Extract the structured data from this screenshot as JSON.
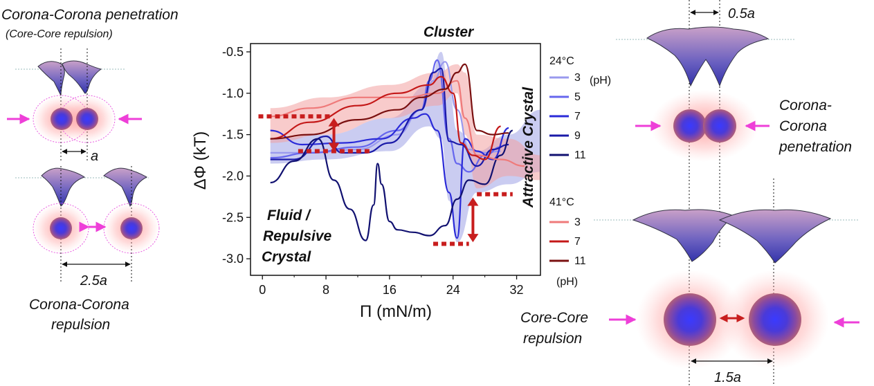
{
  "left_panel": {
    "title": "Corona-Corona penetration",
    "subtitle": "(Core-Core repulsion)",
    "gap_label_close": "a",
    "gap_label_far": "2.5a",
    "caption_line1": "Corona-Corona",
    "caption_line2": "repulsion"
  },
  "right_panel": {
    "top_gap_label": "0.5a",
    "penetration_line1": "Corona-",
    "penetration_line2": "Corona",
    "penetration_line3": "penetration",
    "core_line1": "Core-Core",
    "core_line2": "repulsion",
    "bottom_gap_label": "1.5a"
  },
  "annotations": {
    "cluster": "Cluster",
    "attractive": "Attractive Crystal",
    "fluid_line1": "Fluid /",
    "fluid_line2": "Repulsive",
    "fluid_line3": "Crystal"
  },
  "legend": {
    "group1_title": "24°C",
    "group1_suffix": "(pH)",
    "group1_items": [
      "3",
      "5",
      "7",
      "9",
      "11"
    ],
    "group2_title": "41°C",
    "group2_items": [
      "3",
      "7",
      "11"
    ],
    "group2_suffix": "(pH)"
  },
  "colors": {
    "blue_series": [
      "#9999ee",
      "#6666ee",
      "#2a2ad8",
      "#1a1aa8",
      "#101070"
    ],
    "red_series": [
      "#ef7a7a",
      "#c41818",
      "#7a1010"
    ],
    "blue_band": "#9fa3e6",
    "red_band": "#f2a1a1",
    "dotted_marker": "#c81e1e",
    "arrow": "#c81e1e",
    "pink_arrow": "#ee3fd8"
  },
  "icons": [
    "sphere-core-icon",
    "arrow-icon",
    "double-arrow-icon"
  ],
  "chart_data": {
    "type": "line",
    "title": "",
    "xlabel": "Π (mN/m)",
    "ylabel": "ΔΦ (kT)",
    "xlim": [
      -1.5,
      35
    ],
    "ylim": [
      -3.2,
      -0.4
    ],
    "xticks": [
      0,
      8,
      16,
      24,
      32
    ],
    "yticks": [
      -0.5,
      -1.0,
      -1.5,
      -2.0,
      -2.5,
      -3.0
    ],
    "series": [
      {
        "name": "3",
        "group": "24°C",
        "x": [
          1,
          6,
          12,
          17,
          20,
          21.5,
          23,
          24.5,
          26,
          28,
          30
        ],
        "y": [
          -1.72,
          -1.72,
          -1.68,
          -1.5,
          -1.2,
          -0.85,
          -0.62,
          -1.2,
          -1.68,
          -1.72,
          -1.7
        ]
      },
      {
        "name": "5",
        "group": "24°C",
        "x": [
          1,
          6,
          12,
          17,
          20,
          21,
          22,
          23.5,
          24.5,
          26,
          28,
          30
        ],
        "y": [
          -1.78,
          -1.72,
          -1.65,
          -1.45,
          -1.2,
          -0.85,
          -0.6,
          -1.55,
          -1.85,
          -1.95,
          -1.75,
          -1.65
        ]
      },
      {
        "name": "7",
        "group": "24°C",
        "x": [
          1,
          5,
          10,
          15,
          19,
          20.5,
          22,
          23.5,
          24.5,
          25.5,
          27,
          29,
          31
        ],
        "y": [
          -1.45,
          -1.62,
          -1.6,
          -1.55,
          -1.3,
          -1.25,
          -1.45,
          -2.2,
          -2.75,
          -1.55,
          -1.7,
          -1.8,
          -1.42
        ]
      },
      {
        "name": "9",
        "group": "24°C",
        "x": [
          1,
          4,
          8,
          10,
          13,
          16,
          20,
          21.5,
          22.5,
          23.5,
          25,
          27,
          29,
          31
        ],
        "y": [
          -1.8,
          -1.8,
          -1.52,
          -1.72,
          -1.72,
          -1.6,
          -1.2,
          -0.75,
          -0.7,
          -1.58,
          -1.62,
          -1.88,
          -1.68,
          -1.62
        ]
      },
      {
        "name": "11",
        "group": "24°C",
        "x": [
          1,
          4,
          7,
          9,
          11,
          13,
          14,
          14.5,
          15,
          16,
          17,
          19,
          21,
          23,
          24.5,
          26,
          28,
          30,
          31.5
        ],
        "y": [
          -2.08,
          -1.82,
          -1.55,
          -2.05,
          -2.4,
          -2.78,
          -2.35,
          -1.85,
          -2.1,
          -2.55,
          -2.65,
          -2.68,
          -2.72,
          -2.6,
          -2.28,
          -2.05,
          -2.1,
          -1.75,
          -1.45
        ]
      },
      {
        "name": "3",
        "group": "41°C",
        "x": [
          1,
          6,
          12,
          18,
          22,
          24.5,
          25.5,
          27,
          30,
          33
        ],
        "y": [
          -1.28,
          -1.18,
          -1.05,
          -1.05,
          -1.0,
          -0.85,
          -1.3,
          -1.75,
          -1.8,
          -1.88
        ]
      },
      {
        "name": "7",
        "group": "41°C",
        "x": [
          1,
          6,
          12,
          17,
          21,
          22.5,
          24,
          25,
          26.5,
          28,
          30
        ],
        "y": [
          -1.55,
          -1.35,
          -1.15,
          -1.0,
          -0.9,
          -0.8,
          -1.0,
          -1.6,
          -1.75,
          -1.8,
          -1.4
        ]
      },
      {
        "name": "11",
        "group": "41°C",
        "x": [
          1,
          6,
          12,
          17,
          20,
          23,
          24.5,
          25.5,
          27,
          29,
          31
        ],
        "y": [
          -1.55,
          -1.5,
          -1.32,
          -1.2,
          -1.05,
          -0.95,
          -0.75,
          -0.65,
          -1.45,
          -1.5,
          -1.48
        ]
      }
    ],
    "bands": [
      {
        "color": "blue",
        "x": [
          1,
          8,
          16,
          21,
          22.5,
          23.5,
          24.5,
          27,
          31,
          35
        ],
        "upper": [
          -1.55,
          -1.5,
          -1.3,
          -0.9,
          -0.5,
          -0.95,
          -1.45,
          -1.7,
          -1.5,
          -1.2
        ],
        "lower": [
          -1.85,
          -1.8,
          -1.7,
          -1.4,
          -1.55,
          -2.3,
          -2.8,
          -2.2,
          -2.1,
          -1.95
        ]
      },
      {
        "color": "red",
        "x": [
          1,
          8,
          16,
          22,
          24.5,
          25.5,
          27,
          31,
          35
        ],
        "upper": [
          -1.18,
          -1.05,
          -0.9,
          -0.75,
          -0.65,
          -0.75,
          -1.5,
          -1.55,
          -1.75
        ],
        "lower": [
          -1.6,
          -1.5,
          -1.3,
          -1.15,
          -1.0,
          -1.5,
          -2.15,
          -2.0,
          -2.05
        ]
      }
    ],
    "markers": [
      {
        "x1": -0.5,
        "x2": 8.5,
        "y": -1.28
      },
      {
        "x1": 4.5,
        "x2": 13.5,
        "y": -1.7
      },
      {
        "x1": 21.5,
        "x2": 26,
        "y": -2.82
      },
      {
        "x1": 27,
        "x2": 31.5,
        "y": -2.22
      }
    ],
    "arrows": [
      {
        "x": 9,
        "y1": -1.3,
        "y2": -1.7
      },
      {
        "x": 26.5,
        "y1": -2.26,
        "y2": -2.8
      }
    ],
    "grid": false,
    "legend_position": "right"
  }
}
